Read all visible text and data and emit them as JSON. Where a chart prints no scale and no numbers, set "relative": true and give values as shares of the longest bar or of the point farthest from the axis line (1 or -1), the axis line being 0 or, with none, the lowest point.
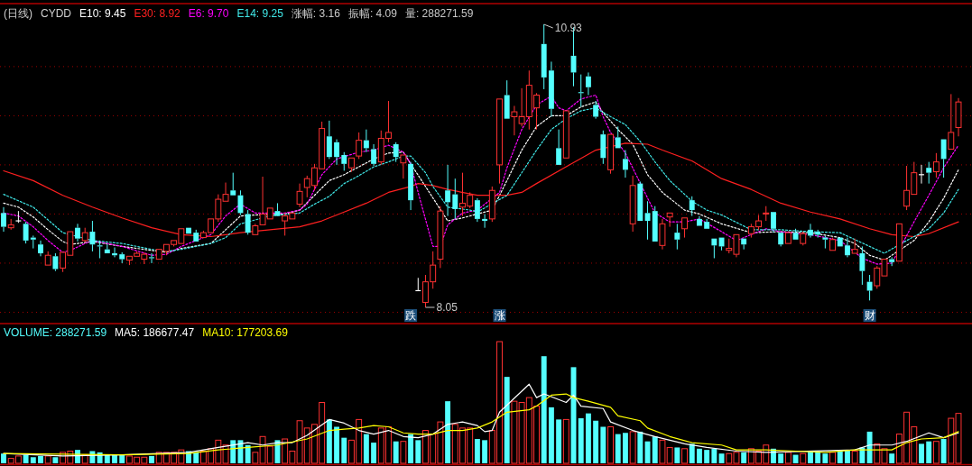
{
  "chart_data": [
    {
      "type": "candlestick",
      "title": "(日线)",
      "subtitle": "CYDD",
      "categories": [
        null,
        null,
        null,
        null,
        null,
        null,
        null,
        null,
        null,
        null,
        null,
        null,
        null,
        null,
        null,
        null,
        null,
        null,
        null,
        null,
        null,
        null,
        null,
        null,
        null,
        null,
        null,
        null,
        null,
        null,
        null,
        null,
        null,
        null,
        null,
        null,
        null,
        null,
        null,
        null,
        null,
        null,
        null,
        null,
        null,
        null,
        null,
        null,
        null,
        null,
        null,
        null,
        null,
        null,
        null,
        "跌",
        null,
        null,
        null,
        null,
        null,
        null,
        null,
        null,
        null,
        null,
        null,
        "涨",
        null,
        null,
        null,
        null,
        null,
        null,
        null,
        null,
        null,
        null,
        null,
        null,
        null,
        null,
        null,
        null,
        null,
        null,
        null,
        null,
        null,
        null,
        null,
        null,
        null,
        null,
        null,
        null,
        null,
        null,
        null,
        null,
        null,
        null,
        null,
        null,
        null,
        null,
        null,
        null,
        null,
        null,
        null,
        null,
        null,
        null,
        null,
        null,
        null,
        "财",
        null,
        null,
        null,
        null,
        null,
        null,
        null,
        null,
        null,
        null,
        null,
        null
      ],
      "ohlc": [
        [
          9.01,
          9.07,
          8.82,
          8.87
        ],
        [
          8.86,
          8.95,
          8.84,
          8.89
        ],
        [
          8.93,
          9.03,
          8.91,
          8.93
        ],
        [
          8.9,
          8.92,
          8.7,
          8.73
        ],
        [
          8.76,
          8.78,
          8.65,
          8.74
        ],
        [
          8.69,
          8.73,
          8.57,
          8.6
        ],
        [
          8.48,
          8.62,
          8.47,
          8.58
        ],
        [
          8.57,
          8.6,
          8.42,
          8.44
        ],
        [
          8.45,
          8.62,
          8.41,
          8.61
        ],
        [
          8.58,
          8.83,
          8.57,
          8.82
        ],
        [
          8.86,
          8.9,
          8.72,
          8.75
        ],
        [
          8.73,
          8.86,
          8.71,
          8.81
        ],
        [
          8.82,
          8.93,
          8.62,
          8.69
        ],
        [
          8.68,
          8.73,
          8.55,
          8.67
        ],
        [
          8.64,
          8.69,
          8.6,
          8.6
        ],
        [
          8.6,
          8.66,
          8.56,
          8.58
        ],
        [
          8.59,
          8.61,
          8.5,
          8.54
        ],
        [
          8.53,
          8.58,
          8.48,
          8.57
        ],
        [
          8.57,
          8.62,
          8.56,
          8.6
        ],
        [
          8.54,
          8.61,
          8.49,
          8.59
        ],
        [
          8.56,
          8.6,
          8.5,
          8.55
        ],
        [
          8.54,
          8.64,
          8.54,
          8.64
        ],
        [
          8.62,
          8.7,
          8.58,
          8.69
        ],
        [
          8.69,
          8.73,
          8.67,
          8.73
        ],
        [
          8.7,
          8.86,
          8.69,
          8.85
        ],
        [
          8.86,
          8.87,
          8.79,
          8.8
        ],
        [
          8.81,
          8.84,
          8.71,
          8.72
        ],
        [
          8.76,
          8.83,
          8.75,
          8.81
        ],
        [
          8.81,
          8.96,
          8.8,
          8.95
        ],
        [
          8.95,
          9.2,
          8.92,
          9.15
        ],
        [
          9.13,
          9.32,
          9.12,
          9.2
        ],
        [
          9.24,
          9.42,
          9.18,
          9.19
        ],
        [
          9.19,
          9.24,
          8.99,
          9.01
        ],
        [
          9.0,
          9.04,
          8.79,
          8.81
        ],
        [
          8.79,
          8.9,
          8.78,
          8.88
        ],
        [
          8.89,
          9.38,
          8.88,
          9.0
        ],
        [
          8.95,
          9.07,
          8.94,
          9.06
        ],
        [
          9.03,
          9.11,
          8.97,
          8.98
        ],
        [
          8.93,
          9.01,
          8.78,
          8.98
        ],
        [
          8.95,
          9.02,
          8.94,
          9.01
        ],
        [
          9.1,
          9.31,
          9.07,
          9.23
        ],
        [
          9.27,
          9.39,
          9.17,
          9.36
        ],
        [
          9.29,
          9.51,
          9.24,
          9.47
        ],
        [
          9.46,
          9.94,
          9.45,
          9.87
        ],
        [
          9.79,
          9.95,
          9.56,
          9.58
        ],
        [
          9.73,
          9.76,
          9.5,
          9.58
        ],
        [
          9.6,
          9.63,
          9.44,
          9.51
        ],
        [
          9.47,
          9.58,
          9.43,
          9.57
        ],
        [
          9.59,
          9.83,
          9.56,
          9.75
        ],
        [
          9.75,
          9.86,
          9.63,
          9.67
        ],
        [
          9.66,
          9.71,
          9.49,
          9.51
        ],
        [
          9.53,
          9.85,
          9.5,
          9.77
        ],
        [
          9.77,
          10.15,
          9.73,
          9.83
        ],
        [
          9.71,
          9.73,
          9.53,
          9.58
        ],
        [
          9.52,
          9.61,
          9.36,
          9.6
        ],
        [
          9.51,
          9.53,
          9.04,
          9.14
        ],
        [
          8.22,
          8.35,
          8.22,
          8.22
        ],
        [
          8.1,
          8.38,
          8.05,
          8.31
        ],
        [
          8.31,
          8.62,
          8.24,
          8.48
        ],
        [
          8.54,
          9.08,
          8.45,
          9.03
        ],
        [
          9.24,
          9.5,
          8.98,
          9.12
        ],
        [
          9.2,
          9.36,
          8.95,
          9.05
        ],
        [
          9.07,
          9.42,
          8.98,
          9.11
        ],
        [
          9.08,
          9.22,
          9.06,
          9.19
        ],
        [
          9.14,
          9.16,
          8.92,
          8.95
        ],
        [
          8.95,
          9.0,
          8.86,
          8.93
        ],
        [
          8.95,
          9.28,
          8.92,
          9.24
        ],
        [
          9.5,
          10.18,
          9.31,
          10.17
        ],
        [
          10.21,
          10.36,
          9.96,
          9.97
        ],
        [
          9.99,
          10.1,
          9.8,
          10.04
        ],
        [
          9.92,
          10.28,
          9.89,
          9.99
        ],
        [
          9.99,
          10.46,
          9.86,
          10.31
        ],
        [
          10.08,
          10.23,
          9.86,
          10.21
        ],
        [
          10.73,
          10.93,
          10.27,
          10.39
        ],
        [
          10.46,
          10.55,
          9.99,
          10.07
        ],
        [
          9.67,
          9.86,
          9.49,
          9.5
        ],
        [
          9.57,
          10.06,
          9.56,
          10.05
        ],
        [
          10.61,
          10.9,
          10.3,
          10.44
        ],
        [
          10.24,
          10.42,
          10.09,
          10.23
        ],
        [
          10.4,
          10.44,
          10.21,
          10.29
        ],
        [
          10.11,
          10.15,
          9.97,
          9.99
        ],
        [
          9.81,
          9.85,
          9.51,
          9.57
        ],
        [
          9.45,
          9.82,
          9.41,
          9.81
        ],
        [
          9.78,
          9.89,
          9.66,
          9.67
        ],
        [
          9.56,
          9.65,
          9.37,
          9.45
        ],
        [
          8.9,
          9.39,
          8.82,
          9.29
        ],
        [
          9.31,
          9.33,
          8.92,
          8.93
        ],
        [
          9.01,
          9.13,
          8.74,
          8.93
        ],
        [
          9.03,
          9.08,
          8.71,
          8.72
        ],
        [
          8.68,
          8.95,
          8.64,
          8.9
        ],
        [
          8.97,
          9.02,
          8.87,
          9.01
        ],
        [
          8.81,
          8.9,
          8.64,
          8.74
        ],
        [
          8.85,
          8.97,
          8.76,
          8.96
        ],
        [
          9.14,
          9.18,
          8.98,
          9.04
        ],
        [
          8.95,
          8.98,
          8.87,
          8.88
        ],
        [
          8.92,
          8.95,
          8.84,
          8.85
        ],
        [
          8.75,
          8.76,
          8.55,
          8.68
        ],
        [
          8.76,
          8.77,
          8.63,
          8.67
        ],
        [
          8.63,
          8.75,
          8.6,
          8.65
        ],
        [
          8.59,
          8.8,
          8.56,
          8.79
        ],
        [
          8.75,
          8.76,
          8.64,
          8.69
        ],
        [
          8.8,
          8.9,
          8.76,
          8.87
        ],
        [
          8.87,
          8.99,
          8.84,
          8.93
        ],
        [
          9.0,
          9.08,
          8.93,
          9.01
        ],
        [
          9.02,
          9.03,
          8.81,
          8.85
        ],
        [
          8.81,
          8.82,
          8.67,
          8.69
        ],
        [
          8.7,
          8.82,
          8.69,
          8.81
        ],
        [
          8.81,
          8.85,
          8.73,
          8.74
        ],
        [
          8.7,
          8.82,
          8.68,
          8.8
        ],
        [
          8.84,
          8.9,
          8.76,
          8.78
        ],
        [
          8.82,
          8.84,
          8.76,
          8.79
        ],
        [
          8.76,
          8.78,
          8.65,
          8.74
        ],
        [
          8.63,
          8.76,
          8.62,
          8.74
        ],
        [
          8.76,
          8.77,
          8.66,
          8.67
        ],
        [
          8.68,
          8.76,
          8.56,
          8.58
        ],
        [
          8.6,
          8.75,
          8.59,
          8.64
        ],
        [
          8.6,
          8.67,
          8.28,
          8.42
        ],
        [
          8.31,
          8.38,
          8.12,
          8.22
        ],
        [
          8.27,
          8.47,
          8.24,
          8.45
        ],
        [
          8.37,
          8.55,
          8.36,
          8.54
        ],
        [
          8.54,
          8.56,
          8.47,
          8.51
        ],
        [
          8.52,
          8.91,
          8.51,
          8.9
        ],
        [
          9.08,
          9.49,
          9.04,
          9.24
        ],
        [
          9.2,
          9.53,
          9.19,
          9.42
        ],
        [
          9.4,
          9.5,
          9.31,
          9.4
        ],
        [
          9.47,
          9.53,
          9.31,
          9.42
        ],
        [
          9.43,
          9.62,
          9.37,
          9.53
        ],
        [
          9.76,
          9.77,
          9.37,
          9.56
        ],
        [
          9.66,
          10.22,
          9.65,
          9.83
        ],
        [
          9.88,
          10.18,
          9.79,
          10.14
        ]
      ],
      "series": [
        {
          "type": "line",
          "name": "E10: 9.45",
          "color": "#ffffff",
          "line_style": "dashed",
          "values": [
            9.11,
            null,
            9.07,
            null,
            8.97,
            null,
            8.84,
            null,
            8.72,
            8.69,
            null,
            null,
            8.72,
            null,
            null,
            null,
            8.67,
            null,
            null,
            null,
            8.63,
            null,
            8.61,
            null,
            8.65,
            null,
            null,
            null,
            8.7,
            null,
            8.84,
            null,
            8.98,
            null,
            8.99,
            null,
            null,
            null,
            9.0,
            null,
            9.04,
            null,
            9.19,
            null,
            9.34,
            null,
            9.4,
            null,
            9.48,
            null,
            9.56,
            null,
            9.62,
            null,
            9.63,
            9.51,
            null,
            9.28,
            null,
            null,
            8.93,
            null,
            8.96,
            null,
            9.0,
            null,
            9.04,
            null,
            9.34,
            null,
            9.65,
            null,
            9.89,
            null,
            10.0,
            null,
            10.0,
            null,
            10.09,
            null,
            10.14,
            10.03,
            null,
            9.86,
            null,
            9.71,
            null,
            9.4,
            null,
            9.22,
            null,
            null,
            9.04,
            null,
            9.0,
            null,
            null,
            8.9,
            null,
            null,
            null,
            8.81,
            null,
            null,
            null,
            8.82,
            null,
            null,
            null,
            8.81,
            null,
            null,
            null,
            8.76,
            null,
            8.7,
            null,
            8.58,
            null,
            8.53,
            null,
            null,
            null,
            8.73,
            null,
            8.92,
            null,
            9.16,
            null,
            9.45
          ]
        },
        {
          "type": "line",
          "name": "E30: 8.92",
          "color": "#ff2020",
          "line_style": "solid",
          "values": [
            9.44,
            null,
            null,
            null,
            9.34,
            null,
            null,
            null,
            9.19,
            null,
            null,
            null,
            9.07,
            null,
            null,
            null,
            8.96,
            null,
            null,
            null,
            8.86,
            null,
            null,
            null,
            8.79,
            null,
            null,
            null,
            8.77,
            null,
            null,
            null,
            8.81,
            null,
            null,
            null,
            8.84,
            null,
            null,
            null,
            8.87,
            null,
            null,
            8.93,
            null,
            null,
            9.02,
            null,
            null,
            9.11,
            null,
            null,
            9.22,
            null,
            null,
            9.28,
            9.31,
            null,
            9.29,
            null,
            9.25,
            null,
            null,
            null,
            9.19,
            null,
            null,
            null,
            9.19,
            null,
            9.22,
            null,
            9.31,
            null,
            null,
            null,
            9.48,
            null,
            null,
            null,
            9.65,
            null,
            null,
            null,
            9.72,
            null,
            null,
            9.71,
            null,
            9.65,
            null,
            null,
            null,
            9.54,
            null,
            null,
            null,
            9.36,
            null,
            null,
            null,
            9.25,
            null,
            null,
            null,
            9.11,
            null,
            null,
            null,
            9.02,
            null,
            null,
            null,
            8.95,
            null,
            null,
            null,
            8.85,
            null,
            null,
            8.79,
            null,
            null,
            8.77,
            null,
            8.8,
            null,
            null,
            null,
            8.92
          ]
        },
        {
          "type": "line",
          "name": "E6: 9.70",
          "color": "#ff00ff",
          "line_style": "dashed",
          "values": [
            9.01,
            null,
            8.98,
            null,
            8.87,
            null,
            8.73,
            null,
            8.61,
            8.63,
            null,
            8.7,
            8.73,
            null,
            null,
            null,
            8.67,
            null,
            null,
            null,
            8.58,
            null,
            8.59,
            null,
            8.67,
            null,
            8.73,
            null,
            8.79,
            null,
            8.98,
            null,
            9.1,
            null,
            9.01,
            null,
            null,
            null,
            9.01,
            null,
            9.04,
            9.1,
            null,
            9.4,
            null,
            9.56,
            null,
            null,
            9.63,
            null,
            9.65,
            null,
            9.7,
            null,
            9.63,
            9.51,
            9.22,
            null,
            8.67,
            8.67,
            8.89,
            null,
            9.01,
            null,
            9.04,
            null,
            null,
            9.22,
            9.47,
            null,
            9.86,
            null,
            10.11,
            null,
            10.2,
            10.08,
            10.05,
            null,
            10.17,
            null,
            10.21,
            9.99,
            9.83,
            null,
            9.62,
            null,
            null,
            null,
            9.01,
            null,
            8.92,
            null,
            8.92,
            null,
            8.95,
            null,
            null,
            8.82,
            null,
            8.73,
            null,
            8.79,
            null,
            8.85,
            null,
            8.82,
            null,
            null,
            null,
            8.79,
            null,
            8.76,
            null,
            8.73,
            null,
            null,
            8.55,
            null,
            8.49,
            null,
            8.5,
            null,
            null,
            8.92,
            null,
            9.19,
            null,
            9.47,
            null,
            9.7
          ]
        },
        {
          "type": "line",
          "name": "E14: 9.25",
          "color": "#40e8e8",
          "line_style": "dashed",
          "values": [
            9.2,
            null,
            null,
            null,
            9.07,
            null,
            null,
            null,
            8.81,
            null,
            null,
            null,
            8.73,
            null,
            null,
            null,
            8.7,
            null,
            null,
            null,
            8.64,
            null,
            8.62,
            null,
            8.64,
            null,
            null,
            null,
            8.7,
            null,
            8.76,
            null,
            8.9,
            null,
            null,
            null,
            8.98,
            null,
            null,
            null,
            9.01,
            null,
            9.1,
            null,
            9.18,
            null,
            9.31,
            null,
            9.39,
            null,
            9.48,
            null,
            9.53,
            null,
            9.59,
            9.59,
            null,
            9.42,
            9.28,
            null,
            9.07,
            null,
            null,
            9.04,
            9.02,
            null,
            null,
            null,
            9.19,
            null,
            null,
            null,
            9.65,
            null,
            9.86,
            null,
            9.97,
            null,
            10.05,
            null,
            10.08,
            null,
            9.99,
            null,
            9.91,
            null,
            9.74,
            null,
            9.53,
            null,
            9.34,
            null,
            null,
            9.13,
            null,
            9.04,
            null,
            8.99,
            null,
            null,
            null,
            8.84,
            null,
            null,
            null,
            8.84,
            null,
            null,
            null,
            8.82,
            null,
            null,
            null,
            8.81,
            null,
            null,
            null,
            8.67,
            null,
            8.6,
            null,
            null,
            8.73,
            null,
            null,
            8.85,
            null,
            9.01,
            null,
            9.25
          ]
        }
      ],
      "yticks": [
        {
          "value": 8,
          "label": null
        },
        {
          "value": 8.5,
          "label": null
        },
        {
          "value": 9,
          "label": null
        },
        {
          "value": 9.5,
          "label": null
        },
        {
          "value": 10,
          "label": null
        },
        {
          "value": 10.5,
          "label": null
        }
      ],
      "grid": "y",
      "tick_labels": "x",
      "annotations": [
        "涨幅: 3.16",
        "振幅: 4.09",
        "量: 288271.59",
        "10.93",
        "8.05"
      ]
    },
    {
      "type": "bar",
      "relative": true,
      "categories": [
        null,
        null,
        null,
        null,
        null,
        null,
        null,
        null,
        null,
        null,
        null,
        null,
        null,
        null,
        null,
        null,
        null,
        null,
        null,
        null,
        null,
        null,
        null,
        null,
        null,
        null,
        null,
        null,
        null,
        null,
        null,
        null,
        null,
        null,
        null,
        null,
        null,
        null,
        null,
        null,
        null,
        null,
        null,
        null,
        null,
        null,
        null,
        null,
        null,
        null,
        null,
        null,
        null,
        null,
        null,
        null,
        null,
        null,
        null,
        null,
        null,
        null,
        null,
        null,
        null,
        null,
        null,
        null,
        null,
        null,
        null,
        null,
        null,
        null,
        null,
        null,
        null,
        null,
        null,
        null,
        null,
        null,
        null,
        null,
        null,
        null,
        null,
        null,
        null,
        null,
        null,
        null,
        null,
        null,
        null,
        null,
        null,
        null,
        null,
        null,
        null,
        null,
        null,
        null,
        null,
        null,
        null,
        null,
        null,
        null,
        null,
        null,
        null,
        null,
        null,
        null,
        null,
        null,
        null,
        null,
        null,
        null,
        null,
        null,
        null,
        null,
        null,
        null,
        null,
        null
      ],
      "series": [
        {
          "name": "VOLUME: 288271.59",
          "color": "#54ffff",
          "values": [
            0.08,
            0.04,
            0.06,
            0.07,
            0.05,
            0.06,
            0.06,
            0.05,
            0.09,
            0.1,
            0.11,
            0.07,
            0.1,
            0.09,
            0.07,
            0.07,
            0.07,
            0.06,
            0.05,
            0.05,
            0.06,
            0.09,
            0.09,
            0.09,
            0.11,
            0.1,
            0.09,
            0.1,
            0.12,
            0.19,
            0.15,
            0.19,
            0.19,
            0.15,
            0.09,
            0.22,
            0.14,
            0.19,
            0.2,
            0.1,
            0.35,
            0.29,
            0.32,
            0.5,
            0.36,
            0.3,
            0.21,
            0.19,
            0.36,
            0.24,
            0.17,
            0.29,
            0.3,
            0.18,
            0.18,
            0.24,
            0.19,
            0.27,
            0.24,
            0.34,
            0.51,
            0.32,
            0.29,
            0.29,
            0.2,
            0.19,
            0.27,
            1,
            0.71,
            0.51,
            0.5,
            0.54,
            0.47,
            0.88,
            0.46,
            0.36,
            0.36,
            0.79,
            0.37,
            0.41,
            0.35,
            0.3,
            0.3,
            0.24,
            0.25,
            0.26,
            0.26,
            0.18,
            0.22,
            0.19,
            0.13,
            0.13,
            0.12,
            0.16,
            0.12,
            0.11,
            0.12,
            0.08,
            0.08,
            0.09,
            0.09,
            0.12,
            0.1,
            0.15,
            0.12,
            0.08,
            0.09,
            0.07,
            0.08,
            0.1,
            0.09,
            0.08,
            0.09,
            0.1,
            0.11,
            0.1,
            0.13,
            0.26,
            0.16,
            0.12,
            0.08,
            0.24,
            0.42,
            0.3,
            0.16,
            0.18,
            0.18,
            0.2,
            0.37,
            0.41
          ],
          "colors": [
            "#54ffff",
            "#ff3232",
            "#ff3232",
            "#54ffff",
            "#54ffff",
            "#54ffff",
            "#ff3232",
            "#54ffff",
            "#ff3232",
            "#ff3232",
            "#54ffff",
            "#ff3232",
            "#54ffff",
            "#54ffff",
            "#54ffff",
            "#54ffff",
            "#54ffff",
            "#ff3232",
            "#ff3232",
            "#ff3232",
            "#54ffff",
            "#ff3232",
            "#ff3232",
            "#ff3232",
            "#ff3232",
            "#54ffff",
            "#54ffff",
            "#ff3232",
            "#ff3232",
            "#ff3232",
            "#ff3232",
            "#54ffff",
            "#54ffff",
            "#54ffff",
            "#ff3232",
            "#ff3232",
            "#ff3232",
            "#54ffff",
            "#ff3232",
            "#ff3232",
            "#ff3232",
            "#ff3232",
            "#ff3232",
            "#ff3232",
            "#54ffff",
            "#54ffff",
            "#54ffff",
            "#ff3232",
            "#ff3232",
            "#54ffff",
            "#54ffff",
            "#ff3232",
            "#ff3232",
            "#54ffff",
            "#ff3232",
            "#54ffff",
            "#54ffff",
            "#ff3232",
            "#ff3232",
            "#ff3232",
            "#54ffff",
            "#ff3232",
            "#ff3232",
            "#ff3232",
            "#54ffff",
            "#54ffff",
            "#ff3232",
            "#ff3232",
            "#54ffff",
            "#ff3232",
            "#ff3232",
            "#ff3232",
            "#ff3232",
            "#54ffff",
            "#54ffff",
            "#54ffff",
            "#ff3232",
            "#54ffff",
            "#54ffff",
            "#54ffff",
            "#54ffff",
            "#54ffff",
            "#ff3232",
            "#54ffff",
            "#54ffff",
            "#ff3232",
            "#54ffff",
            "#54ffff",
            "#54ffff",
            "#ff3232",
            "#ff3232",
            "#54ffff",
            "#ff3232",
            "#54ffff",
            "#54ffff",
            "#54ffff",
            "#54ffff",
            "#54ffff",
            "#ff3232",
            "#ff3232",
            "#54ffff",
            "#ff3232",
            "#ff3232",
            "#ff3232",
            "#54ffff",
            "#54ffff",
            "#ff3232",
            "#54ffff",
            "#ff3232",
            "#54ffff",
            "#54ffff",
            "#54ffff",
            "#ff3232",
            "#54ffff",
            "#54ffff",
            "#ff3232",
            "#54ffff",
            "#54ffff",
            "#ff3232",
            "#ff3232",
            "#54ffff",
            "#ff3232",
            "#ff3232",
            "#ff3232",
            "#54ffff",
            "#54ffff",
            "#ff3232",
            "#54ffff",
            "#ff3232",
            "#ff3232"
          ]
        },
        {
          "type": "line",
          "name": "MA5: 186677.47",
          "color": "#ffffff",
          "values": [
            0.08,
            null,
            null,
            null,
            null,
            null,
            null,
            null,
            0.06,
            null,
            null,
            null,
            null,
            null,
            null,
            null,
            0.07,
            null,
            null,
            null,
            null,
            null,
            null,
            null,
            null,
            0.09,
            null,
            null,
            null,
            0.13,
            null,
            null,
            null,
            0.17,
            null,
            0.15,
            null,
            0.17,
            null,
            0.17,
            null,
            0.23,
            null,
            null,
            0.36,
            null,
            0.33,
            null,
            0.27,
            null,
            0.24,
            null,
            0.27,
            null,
            0.22,
            null,
            0.21,
            null,
            0.24,
            null,
            0.32,
            null,
            0.34,
            null,
            0.31,
            0.26,
            0.27,
            0.42,
            null,
            null,
            null,
            0.65,
            0.54,
            0.57,
            null,
            null,
            0.5,
            0.56,
            0.47,
            null,
            null,
            0.45,
            0.34,
            null,
            null,
            0.27,
            null,
            null,
            0.22,
            null,
            null,
            null,
            0.16,
            null,
            null,
            0.13,
            null,
            null,
            null,
            0.1,
            null,
            null,
            null,
            0.09,
            null,
            null,
            null,
            null,
            null,
            null,
            null,
            null,
            null,
            null,
            null,
            0.11,
            null,
            0.15,
            null,
            null,
            0.15,
            null,
            0.18,
            null,
            null,
            0.25,
            null,
            0.21,
            null,
            0.25
          ]
        },
        {
          "type": "line",
          "name": "MA10: 177203.69",
          "color": "#ffff00",
          "values": [
            0.08,
            null,
            null,
            null,
            null,
            null,
            null,
            null,
            null,
            null,
            null,
            null,
            null,
            null,
            null,
            null,
            0.07,
            null,
            null,
            null,
            null,
            null,
            null,
            null,
            null,
            0.08,
            null,
            null,
            null,
            0.11,
            null,
            null,
            null,
            0.13,
            null,
            null,
            null,
            0.15,
            null,
            null,
            null,
            0.2,
            null,
            null,
            0.27,
            null,
            0.28,
            null,
            0.29,
            null,
            0.31,
            null,
            0.3,
            null,
            0.25,
            null,
            0.24,
            null,
            0.24,
            null,
            0.27,
            null,
            0.27,
            null,
            0.29,
            null,
            0.34,
            null,
            0.42,
            null,
            null,
            0.44,
            0.47,
            null,
            0.56,
            null,
            0.57,
            0.54,
            null,
            0.51,
            null,
            null,
            0.46,
            0.39,
            null,
            null,
            0.35,
            0.29,
            null,
            null,
            0.22,
            null,
            null,
            0.17,
            null,
            null,
            null,
            0.15,
            null,
            0.11,
            null,
            null,
            null,
            0.11,
            null,
            null,
            null,
            0.1,
            null,
            null,
            null,
            0.09,
            null,
            null,
            null,
            0.11,
            null,
            null,
            null,
            null,
            0.11,
            null,
            0.17,
            null,
            0.2,
            null,
            null,
            0.21,
            null,
            0.26
          ]
        }
      ]
    }
  ]
}
